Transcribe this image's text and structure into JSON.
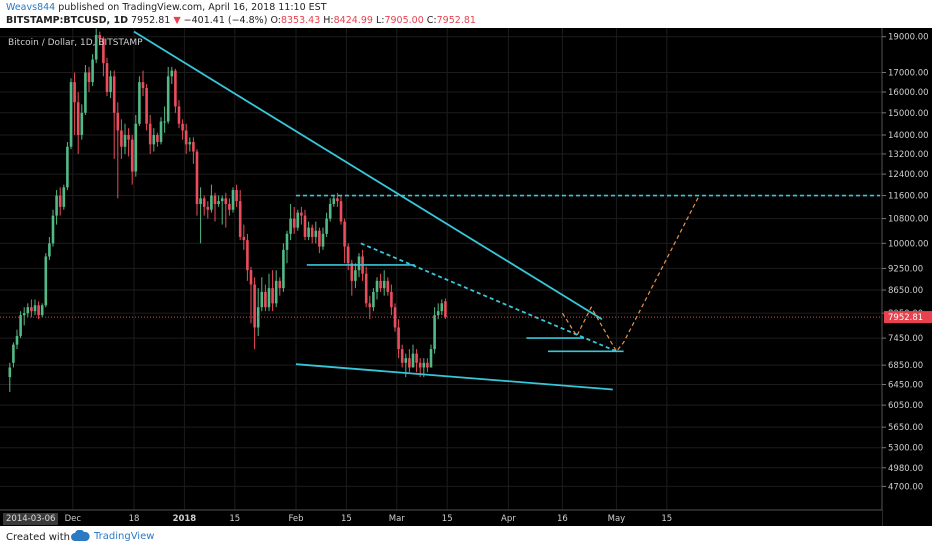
{
  "header": {
    "author": "Weavs844",
    "published": "published on TradingView.com, April 16, 2018 11:10 EST",
    "symbol": "BITSTAMP:BTCUSD, 1D",
    "last": "7952.81",
    "change": "−401.41 (−4.8%)",
    "open_label": "O:",
    "open": "8353.43",
    "high_label": "H:",
    "high": "8424.99",
    "low_label": "L:",
    "low": "7905.00",
    "close_label": "C:",
    "close": "7952.81"
  },
  "chart_data": {
    "type": "candlestick",
    "title": "Bitcoin / Dollar, 1D, BITSTAMP",
    "x_tick_labels": [
      "Dec",
      "18",
      "2018",
      "15",
      "Feb",
      "15",
      "Mar",
      "15",
      "Apr",
      "16",
      "May",
      "15"
    ],
    "y_tick_labels": [
      "19000.00",
      "17000.00",
      "16000.00",
      "15000.00",
      "14000.00",
      "13200.00",
      "12400.00",
      "11600.00",
      "10800.00",
      "10000.00",
      "9250.00",
      "8650.00",
      "8050.00",
      "7450.00",
      "6850.00",
      "6450.00",
      "6050.00",
      "5650.00",
      "5300.00",
      "4980.00",
      "4700.00"
    ],
    "y_scale": "log",
    "ylim": [
      4450,
      19400
    ],
    "current_price_label": "7952.81",
    "current_price": 7952.81,
    "date_badge": "2014-03-06",
    "candles": [
      [
        6600,
        6800,
        6300,
        6900
      ],
      [
        6900,
        7300,
        6800,
        7350
      ],
      [
        7300,
        7500,
        7200,
        7650
      ],
      [
        7500,
        8000,
        7450,
        8100
      ],
      [
        8000,
        8050,
        7750,
        8200
      ],
      [
        8050,
        8200,
        7950,
        8300
      ],
      [
        8200,
        8100,
        7950,
        8400
      ],
      [
        8100,
        8250,
        8000,
        8400
      ],
      [
        8250,
        8000,
        7900,
        8350
      ],
      [
        8000,
        8250,
        7950,
        8300
      ],
      [
        8250,
        9600,
        8200,
        9700
      ],
      [
        9600,
        10000,
        9500,
        10200
      ],
      [
        10000,
        10900,
        9900,
        11100
      ],
      [
        10900,
        11600,
        10600,
        11800
      ],
      [
        11600,
        11200,
        10900,
        11900
      ],
      [
        11200,
        11900,
        11100,
        12000
      ],
      [
        11900,
        13500,
        11800,
        13700
      ],
      [
        13500,
        16500,
        13400,
        16700
      ],
      [
        16500,
        15500,
        14000,
        17000
      ],
      [
        15500,
        14000,
        13200,
        16000
      ],
      [
        14000,
        15000,
        13800,
        15400
      ],
      [
        15000,
        17000,
        14900,
        17400
      ],
      [
        17000,
        16500,
        16000,
        17300
      ],
      [
        16500,
        17700,
        16300,
        18000
      ],
      [
        17700,
        19100,
        17500,
        19500
      ],
      [
        19100,
        18900,
        18500,
        19300
      ],
      [
        18900,
        17500,
        16800,
        19000
      ],
      [
        17500,
        16000,
        15800,
        17800
      ],
      [
        16000,
        16800,
        15700,
        17100
      ],
      [
        16800,
        15000,
        13000,
        17100
      ],
      [
        15000,
        14200,
        11500,
        15500
      ],
      [
        14200,
        13500,
        13000,
        14700
      ],
      [
        13500,
        14000,
        13200,
        14500
      ],
      [
        14000,
        13800,
        13100,
        14300
      ],
      [
        13800,
        12500,
        12000,
        14000
      ],
      [
        12500,
        14500,
        12300,
        14900
      ],
      [
        14500,
        16500,
        14400,
        16800
      ],
      [
        16500,
        16200,
        15800,
        17100
      ],
      [
        16200,
        14500,
        14200,
        16400
      ],
      [
        14500,
        13600,
        13200,
        14900
      ],
      [
        13600,
        14000,
        13300,
        14300
      ],
      [
        14000,
        13700,
        13500,
        14100
      ],
      [
        13700,
        14600,
        13600,
        14800
      ],
      [
        14600,
        14600,
        14100,
        15300
      ],
      [
        14600,
        16800,
        14500,
        17300
      ],
      [
        16800,
        17100,
        16400,
        17300
      ],
      [
        17100,
        15300,
        15000,
        17200
      ],
      [
        15300,
        14500,
        14300,
        15600
      ],
      [
        14500,
        14200,
        13800,
        14700
      ],
      [
        14200,
        13600,
        13200,
        14500
      ],
      [
        13600,
        13700,
        13300,
        13900
      ],
      [
        13700,
        13300,
        12800,
        13900
      ],
      [
        13300,
        11300,
        10900,
        13400
      ],
      [
        11300,
        11500,
        10000,
        11900
      ],
      [
        11500,
        11200,
        10900,
        11600
      ],
      [
        11200,
        11100,
        10800,
        11400
      ],
      [
        11100,
        11600,
        11000,
        12000
      ],
      [
        11600,
        11300,
        10700,
        11700
      ],
      [
        11300,
        11400,
        11200,
        11600
      ],
      [
        11400,
        11500,
        10600,
        11600
      ],
      [
        11500,
        11300,
        10500,
        11700
      ],
      [
        11300,
        11100,
        10900,
        11500
      ],
      [
        11100,
        11800,
        11000,
        11900
      ],
      [
        11800,
        11400,
        11200,
        12000
      ],
      [
        11400,
        10200,
        10100,
        11800
      ],
      [
        10200,
        10100,
        9800,
        10600
      ],
      [
        10100,
        9200,
        8900,
        10300
      ],
      [
        9200,
        8800,
        7800,
        9300
      ],
      [
        8800,
        7700,
        7200,
        9000
      ],
      [
        7700,
        8200,
        7500,
        8700
      ],
      [
        8200,
        8600,
        8100,
        9000
      ],
      [
        8600,
        8200,
        8100,
        8800
      ],
      [
        8200,
        8700,
        8100,
        9100
      ],
      [
        8700,
        8300,
        8100,
        9200
      ],
      [
        8300,
        8900,
        8200,
        9200
      ],
      [
        8900,
        8700,
        8500,
        9000
      ],
      [
        8700,
        9800,
        8600,
        10000
      ],
      [
        9800,
        10300,
        9400,
        10400
      ],
      [
        10300,
        10800,
        10100,
        11300
      ],
      [
        10800,
        10500,
        10300,
        11200
      ],
      [
        10500,
        11000,
        10400,
        11100
      ],
      [
        11000,
        10900,
        10600,
        11200
      ],
      [
        10900,
        10200,
        10100,
        11100
      ],
      [
        10200,
        10500,
        10100,
        10700
      ],
      [
        10500,
        10200,
        10000,
        10600
      ],
      [
        10200,
        10400,
        10000,
        10700
      ],
      [
        10400,
        9900,
        9700,
        10500
      ],
      [
        9900,
        10300,
        9800,
        10500
      ],
      [
        10300,
        10800,
        10200,
        11000
      ],
      [
        10800,
        11300,
        10700,
        11500
      ],
      [
        11300,
        11500,
        11200,
        11600
      ],
      [
        11500,
        11400,
        11200,
        11700
      ],
      [
        11400,
        10700,
        10600,
        11600
      ],
      [
        10700,
        9900,
        9400,
        10800
      ],
      [
        9900,
        9400,
        9200,
        10000
      ],
      [
        9400,
        8900,
        8500,
        9500
      ],
      [
        8900,
        9200,
        8700,
        9400
      ],
      [
        9200,
        9600,
        9000,
        9700
      ],
      [
        9600,
        9100,
        8900,
        9800
      ],
      [
        9100,
        8300,
        8200,
        9300
      ],
      [
        8300,
        8200,
        7900,
        8500
      ],
      [
        8200,
        8600,
        8100,
        8700
      ],
      [
        8600,
        8900,
        8400,
        9000
      ],
      [
        8900,
        8700,
        8600,
        9100
      ],
      [
        8700,
        8900,
        8500,
        9200
      ],
      [
        8900,
        8600,
        8500,
        9000
      ],
      [
        8600,
        8200,
        8000,
        8800
      ],
      [
        8200,
        7700,
        7600,
        8300
      ],
      [
        7700,
        7200,
        7000,
        7900
      ],
      [
        7200,
        6900,
        6800,
        7300
      ],
      [
        6900,
        7000,
        6600,
        7100
      ],
      [
        7000,
        6800,
        6700,
        7200
      ],
      [
        6800,
        7100,
        6900,
        7300
      ],
      [
        7100,
        6900,
        6700,
        7200
      ],
      [
        6900,
        6800,
        6600,
        7000
      ],
      [
        6800,
        6900,
        6600,
        7000
      ],
      [
        6900,
        6800,
        6700,
        7000
      ],
      [
        6800,
        7200,
        6800,
        7300
      ],
      [
        7200,
        8000,
        7100,
        8200
      ],
      [
        8000,
        8100,
        7900,
        8300
      ],
      [
        8100,
        8300,
        8000,
        8400
      ],
      [
        8353.43,
        7952.81,
        7905,
        8424.99
      ]
    ],
    "annotations": [
      {
        "kind": "trendline",
        "style": "solid",
        "from": [
          "Dec 18 2017",
          19300
        ],
        "to": [
          "Apr 27 2018",
          7900
        ]
      },
      {
        "kind": "trendline",
        "style": "solid",
        "from": [
          "Feb 1 2018",
          6870
        ],
        "to": [
          "Apr 30 2018",
          6350
        ]
      },
      {
        "kind": "horizontal",
        "style": "dashed",
        "y": 11600,
        "x_from": "Feb 1 2018",
        "x_to": "end"
      },
      {
        "kind": "horizontal",
        "style": "solid",
        "y": 9350,
        "x_from": "Feb 4 2018",
        "x_to": "Mar 6 2018"
      },
      {
        "kind": "horizontal",
        "style": "solid",
        "y": 7450,
        "x_from": "Apr 6 2018",
        "x_to": "Apr 22 2018"
      },
      {
        "kind": "horizontal",
        "style": "solid",
        "y": 7150,
        "x_from": "Apr 12 2018",
        "x_to": "May 3 2018"
      },
      {
        "kind": "trendline",
        "style": "dashed",
        "from": [
          "Feb 19 2018",
          10000
        ],
        "to": [
          "May 1 2018",
          7150
        ]
      },
      {
        "kind": "projection",
        "style": "dashed",
        "points": [
          [
            "Apr 16 2018",
            8050
          ],
          [
            "Apr 20 2018",
            7500
          ],
          [
            "Apr 24 2018",
            8200
          ],
          [
            "May 1 2018",
            7150
          ],
          [
            "May 3 2018",
            7350
          ],
          [
            "May 24 2018",
            11600
          ]
        ]
      }
    ]
  },
  "footer": {
    "created_with": "Created with",
    "brand": "TradingView"
  }
}
